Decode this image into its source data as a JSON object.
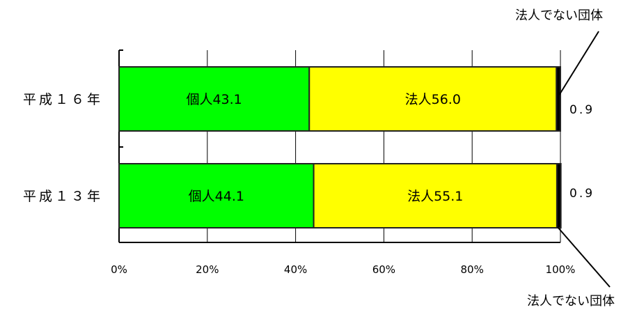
{
  "chart_data": {
    "type": "bar",
    "orientation": "horizontal",
    "stacked": true,
    "categories": [
      "平成１６年",
      "平成１３年"
    ],
    "series": [
      {
        "name": "個人",
        "values": [
          43.1,
          44.1
        ],
        "labels": [
          "個人43.1",
          "個人44.1"
        ],
        "color": "#00ff00"
      },
      {
        "name": "法人",
        "values": [
          56.0,
          55.1
        ],
        "labels": [
          "法人56.0",
          "法人55.1"
        ],
        "color": "#ffff00"
      },
      {
        "name": "法人でない団体",
        "values": [
          0.9,
          0.9
        ],
        "labels": [
          "0.9",
          "0.9"
        ],
        "color": "#000000"
      }
    ],
    "x_ticks": [
      "0%",
      "20%",
      "40%",
      "60%",
      "80%",
      "100%"
    ],
    "xlim": [
      0,
      100
    ],
    "grid": true,
    "callouts": [
      "法人でない団体",
      "法人でない団体"
    ]
  }
}
